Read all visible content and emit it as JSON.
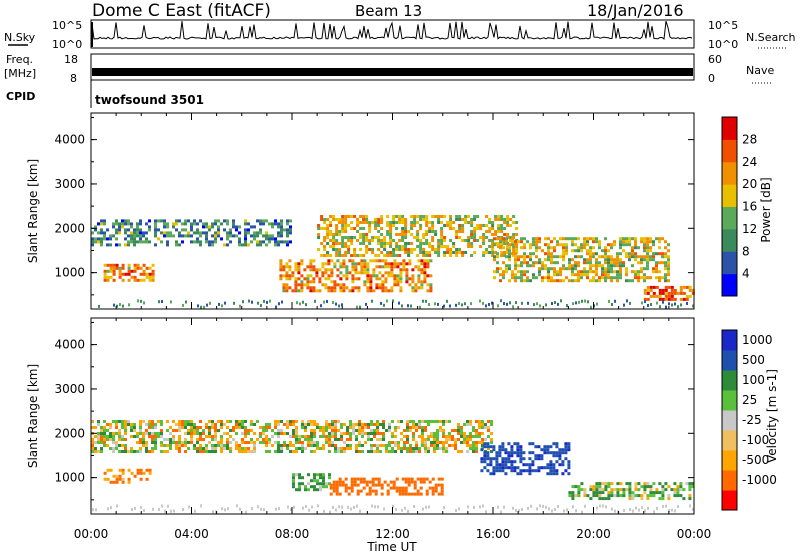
{
  "header": {
    "station": "Dome C East (fitACF)",
    "beam": "Beam 13",
    "date": "18/Jan/2016"
  },
  "status_panels": {
    "nsky_label": "N.Sky",
    "nsky_ticks": [
      "10^5",
      "10^0"
    ],
    "nsearch_label": "N.Search",
    "nsearch_ticks": [
      "10^5",
      "10^0"
    ],
    "freq_label": "Freq.",
    "freq_unit": "[MHz]",
    "freq_ticks": [
      "18",
      "8"
    ],
    "nave_label": "Nave",
    "nave_ticks": [
      "60",
      "0"
    ],
    "cpid_label": "CPID",
    "cpid_value": "twofsound 3501"
  },
  "time_axis": {
    "label": "Time UT",
    "ticks": [
      "00:00",
      "04:00",
      "08:00",
      "12:00",
      "16:00",
      "20:00",
      "00:00"
    ]
  },
  "colors": {
    "power": [
      "#0000ff",
      "#2b54a8",
      "#3a8a5c",
      "#5aaa5a",
      "#e8c000",
      "#f09000",
      "#f05000",
      "#e00000"
    ],
    "velocity": [
      "#ff0000",
      "#ff6a00",
      "#ffa500",
      "#f0c060",
      "#c8c8c8",
      "#58c03a",
      "#2e8b3a",
      "#1e50b0",
      "#1a28c8"
    ]
  },
  "chart_data": [
    {
      "type": "heatmap",
      "title": "Power",
      "xlabel": "",
      "ylabel": "Slant Range [km]",
      "x_range_hours": [
        0,
        24
      ],
      "ylim": [
        180,
        4600
      ],
      "yticks": [
        "1000",
        "2000",
        "3000",
        "4000"
      ],
      "colorbar": {
        "label": "Power [dB]",
        "ticks": [
          "4",
          "8",
          "12",
          "16",
          "20",
          "24",
          "28"
        ],
        "range": [
          0,
          32
        ]
      },
      "echo_bands": [
        {
          "t_start": 0.0,
          "t_end": 8.0,
          "r_start": 1600,
          "r_end": 2200,
          "level": 10
        },
        {
          "t_start": 0.5,
          "t_end": 2.5,
          "r_start": 850,
          "r_end": 1200,
          "level": 22
        },
        {
          "t_start": 7.5,
          "t_end": 13.5,
          "r_start": 600,
          "r_end": 1300,
          "level": 22
        },
        {
          "t_start": 9.0,
          "t_end": 17.0,
          "r_start": 1400,
          "r_end": 2300,
          "level": 18
        },
        {
          "t_start": 16.0,
          "t_end": 23.0,
          "r_start": 800,
          "r_end": 1800,
          "level": 18
        },
        {
          "t_start": 22.0,
          "t_end": 24.0,
          "r_start": 400,
          "r_end": 700,
          "level": 25
        }
      ]
    },
    {
      "type": "heatmap",
      "title": "Velocity",
      "xlabel": "Time UT",
      "ylabel": "Slant Range [km]",
      "x_range_hours": [
        0,
        24
      ],
      "ylim": [
        180,
        4600
      ],
      "yticks": [
        "1000",
        "2000",
        "3000",
        "4000"
      ],
      "colorbar": {
        "label": "Velocity [m s-1]",
        "ticks": [
          "1000",
          "500",
          "100",
          "25",
          "-25",
          "-100",
          "-500",
          "-1000"
        ]
      },
      "echo_bands": [
        {
          "t_start": 0.0,
          "t_end": 16.0,
          "r_start": 1600,
          "r_end": 2300,
          "velocity": 0
        },
        {
          "t_start": 0.5,
          "t_end": 2.5,
          "r_start": 900,
          "r_end": 1200,
          "velocity": -150
        },
        {
          "t_start": 8.0,
          "t_end": 9.5,
          "r_start": 700,
          "r_end": 1100,
          "velocity": 150
        },
        {
          "t_start": 9.5,
          "t_end": 14.0,
          "r_start": 600,
          "r_end": 1000,
          "velocity": -300
        },
        {
          "t_start": 15.5,
          "t_end": 19.0,
          "r_start": 1100,
          "r_end": 1800,
          "velocity": 900
        },
        {
          "t_start": 19.0,
          "t_end": 24.0,
          "r_start": 500,
          "r_end": 900,
          "velocity": 80
        }
      ]
    }
  ]
}
